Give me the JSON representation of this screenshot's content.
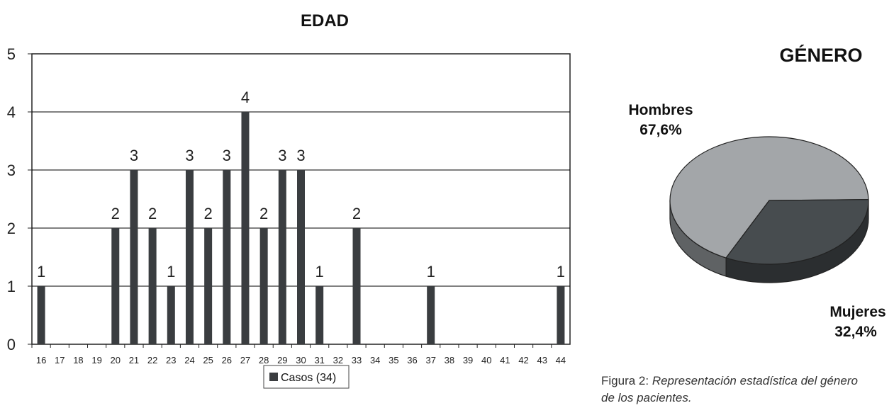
{
  "chart_data": [
    {
      "type": "bar",
      "title": "EDAD",
      "categories": [
        "16",
        "17",
        "18",
        "19",
        "20",
        "21",
        "22",
        "23",
        "24",
        "25",
        "26",
        "27",
        "28",
        "29",
        "30",
        "31",
        "32",
        "33",
        "34",
        "35",
        "36",
        "37",
        "38",
        "39",
        "40",
        "41",
        "42",
        "43",
        "44"
      ],
      "series": [
        {
          "name": "Casos (34)",
          "values": [
            1,
            0,
            0,
            0,
            2,
            3,
            2,
            1,
            3,
            2,
            3,
            4,
            2,
            3,
            3,
            1,
            0,
            2,
            0,
            0,
            0,
            1,
            0,
            0,
            0,
            0,
            0,
            0,
            1
          ]
        }
      ],
      "y_ticks": [
        "0",
        "1",
        "2",
        "3",
        "4",
        "5"
      ],
      "ylim": [
        0,
        5
      ],
      "grid": true,
      "legend": "bottom-center",
      "colors": {
        "bar": "#3a3d40",
        "grid": "#000000",
        "plot_bg": "#ffffff"
      }
    },
    {
      "type": "pie",
      "title": "GÉNERO",
      "slices": [
        {
          "label": "Hombres",
          "value": 67.6,
          "value_label": "67,6%",
          "color": "#a3a6a9"
        },
        {
          "label": "Mujeres",
          "value": 32.4,
          "value_label": "32,4%",
          "color": "#474c4f"
        }
      ]
    }
  ],
  "caption": {
    "prefix": "Figura 2: ",
    "italic_line1": "Representación estadística del género",
    "italic_line2": "de los pacientes."
  }
}
